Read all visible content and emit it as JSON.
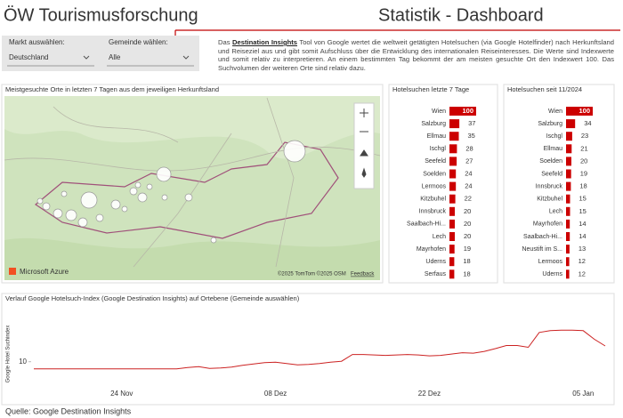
{
  "header": {
    "title": "ÖW Tourismusforschung",
    "subtitle": "Statistik - Dashboard"
  },
  "filters": [
    {
      "label": "Markt auswählen:",
      "value": "Deutschland"
    },
    {
      "label": "Gemeinde wählen:",
      "value": "Alle"
    }
  ],
  "description": {
    "lead": "Das ",
    "link": "Destination Insights",
    "text": " Tool von Google wertet die weltweit getätigten Hotelsuchen (via Google Hotelfinder) nach Herkunftsland und Reiseziel aus und gibt somit Aufschluss über die Entwicklung des internationalen Reiseinteresses. Die Werte sind Indexwerte und somit relativ zu interpretieren. An einem bestimmten Tag bekommt der am meisten gesuchte Ort den Indexwert 100. Das Suchvolumen der weiteren Orte sind relativ dazu."
  },
  "map": {
    "title": "Meistgesuchte Orte in letzten 7 Tagen aus dem jeweiligen Herkunftsland",
    "brand": "Microsoft Azure",
    "attribution": "©2025 TomTom ©2025 OSM",
    "feedback": "Feedback"
  },
  "chart_data": [
    {
      "type": "bar",
      "title": "Hotelsuchen letzte 7 Tage",
      "color": "#cc0000",
      "categories": [
        "Wien",
        "Salzburg",
        "Ellmau",
        "Ischgl",
        "Seefeld",
        "Soelden",
        "Lermoos",
        "Kitzbuhel",
        "Innsbruck",
        "Saalbach-Hi...",
        "Lech",
        "Mayrhofen",
        "Uderns",
        "Serfaus"
      ],
      "values": [
        100,
        37,
        35,
        28,
        27,
        24,
        24,
        22,
        20,
        20,
        20,
        19,
        18,
        18
      ]
    },
    {
      "type": "bar",
      "title": "Hotelsuchen seit 11/2024",
      "color": "#cc0000",
      "categories": [
        "Wien",
        "Salzburg",
        "Ischgl",
        "Ellmau",
        "Soelden",
        "Seefeld",
        "Innsbruck",
        "Kitzbuhel",
        "Lech",
        "Mayrhofen",
        "Saalbach-Hi...",
        "Neustift im S...",
        "Lermoos",
        "Uderns"
      ],
      "values": [
        100,
        34,
        23,
        21,
        20,
        19,
        18,
        15,
        15,
        14,
        14,
        13,
        12,
        12
      ]
    },
    {
      "type": "line",
      "title": "Verlauf Google Hotelsuch-Index (Google Destination Insights) auf Ortebene (Gemeinde auswählen)",
      "y_label": "Google Hotel Suchindex",
      "color": "#cc2222",
      "categories": [
        "16 Nov",
        "17 Nov",
        "18 Nov",
        "19 Nov",
        "20 Nov",
        "21 Nov",
        "22 Nov",
        "23 Nov",
        "24 Nov",
        "25 Nov",
        "26 Nov",
        "27 Nov",
        "28 Nov",
        "29 Nov",
        "30 Nov",
        "01 Dez",
        "02 Dez",
        "03 Dez",
        "04 Dez",
        "05 Dez",
        "06 Dez",
        "07 Dez",
        "08 Dez",
        "09 Dez",
        "10 Dez",
        "11 Dez",
        "12 Dez",
        "13 Dez",
        "14 Dez",
        "15 Dez",
        "16 Dez",
        "17 Dez",
        "18 Dez",
        "19 Dez",
        "20 Dez",
        "21 Dez",
        "22 Dez",
        "23 Dez",
        "24 Dez",
        "25 Dez",
        "26 Dez",
        "27 Dez",
        "28 Dez",
        "29 Dez",
        "30 Dez",
        "31 Dez",
        "01 Jan",
        "02 Jan",
        "03 Jan",
        "04 Jan",
        "05 Jan",
        "06 Jan",
        "07 Jan"
      ],
      "values": [
        8.4,
        8.4,
        8.4,
        8.4,
        8.4,
        8.4,
        8.4,
        8.4,
        8.4,
        8.4,
        8.4,
        8.4,
        8.4,
        8.4,
        8.7,
        8.9,
        8.5,
        8.6,
        8.8,
        9.2,
        9.5,
        9.8,
        9.9,
        9.6,
        9.3,
        9.4,
        9.6,
        9.9,
        10.1,
        11.6,
        11.6,
        11.5,
        11.4,
        11.5,
        11.6,
        11.5,
        11.3,
        11.4,
        11.7,
        12,
        11.9,
        12.3,
        12.9,
        13.6,
        13.6,
        13.2,
        16.5,
        16.9,
        17,
        17,
        16.9,
        15,
        13.5
      ],
      "xticks": [
        "24 Nov",
        "08 Dez",
        "22 Dez",
        "05 Jan"
      ],
      "ylim": [
        5,
        22
      ],
      "yticks": [
        10
      ]
    }
  ],
  "footer": "Quelle: Google Destination Insights"
}
